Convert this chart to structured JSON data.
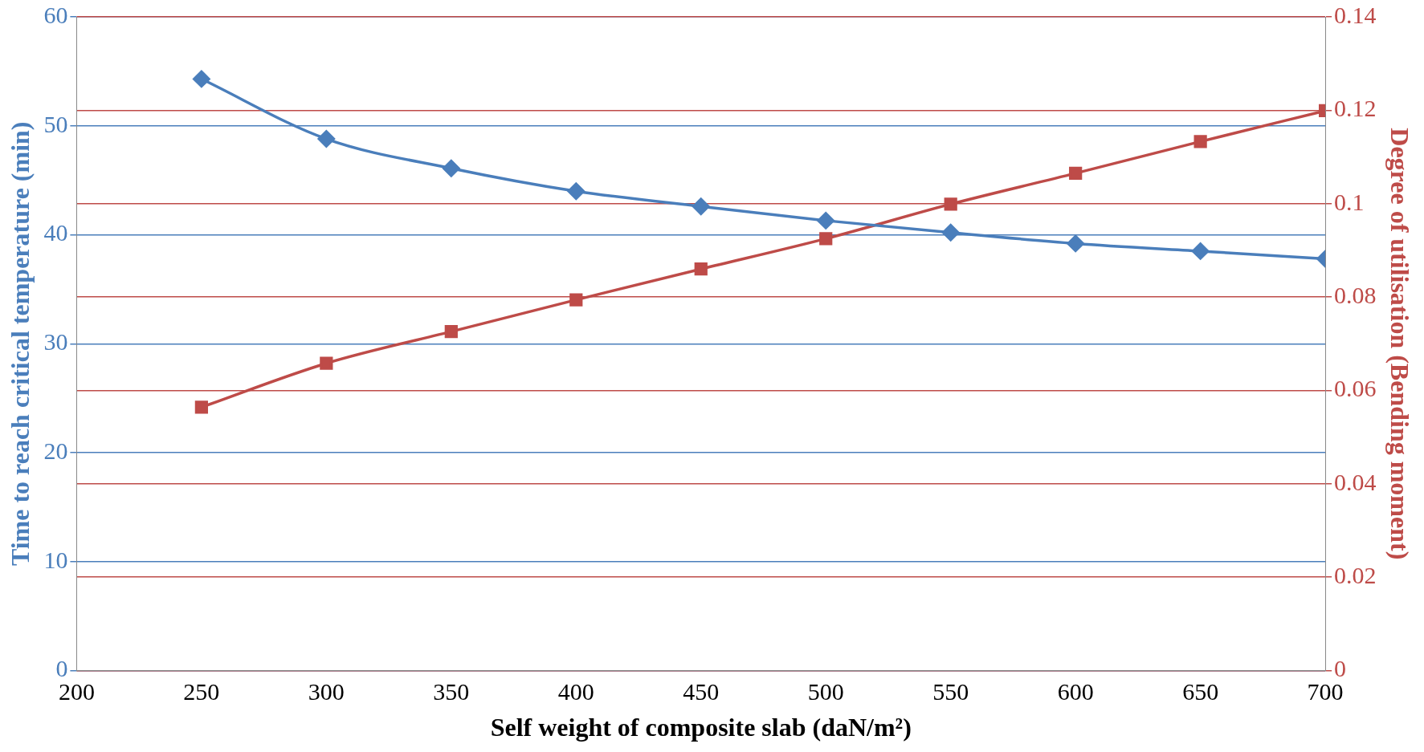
{
  "chart_data": {
    "type": "line",
    "xlabel": "Self weight of composite slab (daN/m²)",
    "ylabel": "Time to reach critical temperature (min)",
    "y2label": "Degree of utilisation (Bending moment)",
    "x": [
      250,
      300,
      350,
      400,
      450,
      500,
      550,
      600,
      650,
      700
    ],
    "series": [
      {
        "color": "#4a7ebb",
        "marker": "diamond",
        "values": [
          54.3,
          48.8,
          46.1,
          44.0,
          42.6,
          41.3,
          40.2,
          39.2,
          38.5,
          37.8
        ]
      },
      {
        "color": "#be4b48",
        "marker": "square",
        "axis": "y2",
        "values": [
          0.0564,
          0.0658,
          0.0726,
          0.0794,
          0.086,
          0.0925,
          0.0999,
          0.1065,
          0.1133,
          0.1199
        ]
      }
    ],
    "xlim": [
      200,
      700
    ],
    "xticks": [
      200,
      250,
      300,
      350,
      400,
      450,
      500,
      550,
      600,
      650,
      700
    ],
    "ylim": [
      0,
      60
    ],
    "yticks": [
      0,
      10,
      20,
      30,
      40,
      50,
      60
    ],
    "y2lim": [
      0,
      0.14
    ],
    "y2ticks": [
      0,
      0.02,
      0.04,
      0.06,
      0.08,
      0.1,
      0.12,
      0.14
    ],
    "grid": "y",
    "legend": false
  }
}
